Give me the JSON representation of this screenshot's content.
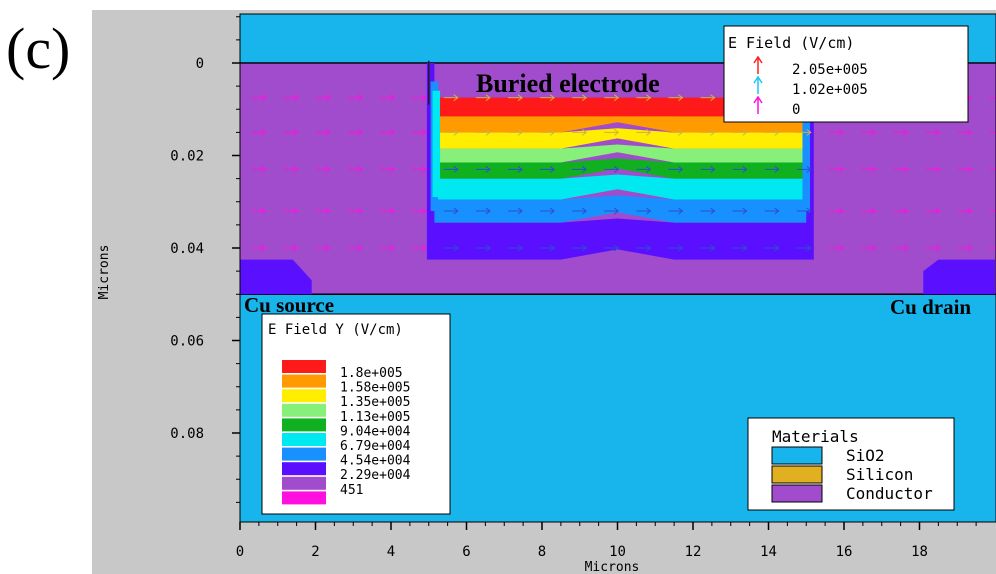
{
  "panel_label": "(c)",
  "colors": {
    "sio2": "#18b4ec",
    "silicon": "#e0b020",
    "conductor": "#a04ccc",
    "frame_bg": "#c8c8c8"
  },
  "chart_data": {
    "type": "heatmap",
    "title": "",
    "xlabel": "Microns",
    "ylabel": "Microns",
    "xlim": [
      0,
      20
    ],
    "ylim": [
      0.1,
      -0.013
    ],
    "x_ticks": [
      0,
      2,
      4,
      6,
      8,
      10,
      12,
      14,
      16,
      18
    ],
    "x_tick_labels": [
      "0",
      "2",
      "4",
      "6",
      "8",
      "10",
      "12",
      "14",
      "16",
      "18"
    ],
    "y_ticks": [
      0,
      0.02,
      0.04,
      0.06,
      0.08
    ],
    "y_tick_labels": [
      "0",
      "0.02",
      "0.04",
      "0.06",
      "0.08"
    ],
    "annotations": {
      "buried_electrode": "Buried electrode",
      "cu_source": "Cu source",
      "cu_drain": "Cu drain"
    },
    "legend_efield_y": {
      "title": "E Field Y (V/cm)",
      "placement": "bottom-left",
      "entries": [
        {
          "label": "1.8e+005",
          "color": "#ff1a1a"
        },
        {
          "label": "1.58e+005",
          "color": "#ff9a00"
        },
        {
          "label": "1.35e+005",
          "color": "#ffee00"
        },
        {
          "label": "1.13e+005",
          "color": "#86f07a"
        },
        {
          "label": "9.04e+004",
          "color": "#10b020"
        },
        {
          "label": "6.79e+004",
          "color": "#00e8f0"
        },
        {
          "label": "4.54e+004",
          "color": "#1890ff"
        },
        {
          "label": "2.29e+004",
          "color": "#5a10ff"
        },
        {
          "label": "451",
          "color": "#a04ccc"
        },
        {
          "label": "",
          "color": "#ff10e0"
        }
      ]
    },
    "legend_efield_vector": {
      "title": "E Field (V/cm)",
      "placement": "top-right",
      "entries": [
        {
          "label": "2.05e+005",
          "color": "#ff2020"
        },
        {
          "label": "1.02e+005",
          "color": "#18c8f0"
        },
        {
          "label": "0",
          "color": "#ff10e0"
        }
      ]
    },
    "legend_materials": {
      "title": "Materials",
      "placement": "bottom-right",
      "entries": [
        {
          "label": "SiO2",
          "color": "#18b4ec"
        },
        {
          "label": "Silicon",
          "color": "#e0b020"
        },
        {
          "label": "Conductor",
          "color": "#a04ccc"
        }
      ]
    },
    "regions": [
      {
        "material": "SiO2",
        "x": [
          0,
          20
        ],
        "y": [
          -0.013,
          0.1
        ]
      },
      {
        "material": "Conductor",
        "x": [
          0,
          20
        ],
        "y": [
          0,
          0.05
        ]
      }
    ],
    "contour_bands": [
      {
        "label": "1.8e+005",
        "y": [
          0.0075,
          0.0115
        ]
      },
      {
        "label": "1.58e+005",
        "y": [
          0.0115,
          0.015
        ]
      },
      {
        "label": "1.35e+005",
        "y": [
          0.015,
          0.0185
        ]
      },
      {
        "label": "1.13e+005",
        "y": [
          0.0185,
          0.0215
        ]
      },
      {
        "label": "9.04e+004",
        "y": [
          0.0215,
          0.025
        ]
      },
      {
        "label": "6.79e+004",
        "y": [
          0.025,
          0.0295
        ]
      },
      {
        "label": "4.54e+004",
        "y": [
          0.0295,
          0.0345
        ]
      },
      {
        "label": "2.29e+004",
        "y": [
          0.0345,
          0.0425
        ]
      }
    ],
    "vector_rows_y": [
      0.0075,
      0.015,
      0.023,
      0.032,
      0.04
    ]
  }
}
